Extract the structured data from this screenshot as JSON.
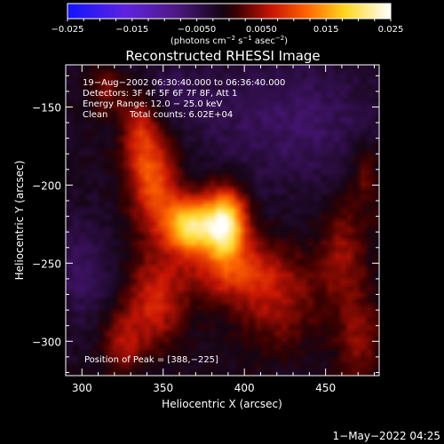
{
  "chart_data": {
    "type": "heatmap",
    "title": "Reconstructed RHESSI Image",
    "xlabel": "Heliocentric X (arcsec)",
    "ylabel": "Heliocentric Y (arcsec)",
    "xlim": [
      290,
      483
    ],
    "ylim": [
      -322,
      -123
    ],
    "x_ticks": [
      300,
      350,
      400,
      450
    ],
    "y_ticks": [
      -150,
      -200,
      -250,
      -300
    ],
    "colorbar": {
      "ticks": [
        "−0.025",
        "−0.015",
        "−0.0050",
        "0.0050",
        "0.015",
        "0.025"
      ],
      "range": [
        -0.025,
        0.025
      ],
      "label": "(photons cm",
      "label_exp1": "−2",
      "label_mid": " s",
      "label_exp2": "−1",
      "label_end": " asec",
      "label_exp3": "−2",
      "label_close": ")"
    },
    "info": {
      "time": "19−Aug−2002 06:30:40.000 to 06:36:40.000",
      "detectors": "Detectors: 3F 4F 5F 6F 7F 8F, Att 1",
      "energy": "Energy Range: 12.0 − 25.0 keV",
      "clean": "Clean",
      "counts": "Total counts: 6.02E+04"
    },
    "peak_label": "Position of Peak = [388,−225]",
    "peak": [
      388,
      -225
    ],
    "sources": [
      {
        "x": 388,
        "y": -225,
        "sx": 9,
        "sy": 15,
        "a": 0.0245
      },
      {
        "x": 366,
        "y": -226,
        "sx": 10,
        "sy": 12,
        "a": 0.0215
      },
      {
        "x": 345,
        "y": -200,
        "sx": 10,
        "sy": 22,
        "a": 0.0115
      },
      {
        "x": 335,
        "y": -165,
        "sx": 8,
        "sy": 20,
        "a": 0.0085
      },
      {
        "x": 315,
        "y": -140,
        "sx": 7,
        "sy": 10,
        "a": 0.006
      },
      {
        "x": 395,
        "y": -255,
        "sx": 24,
        "sy": 14,
        "a": 0.009
      },
      {
        "x": 345,
        "y": -275,
        "sx": 12,
        "sy": 20,
        "a": 0.0085
      },
      {
        "x": 325,
        "y": -300,
        "sx": 9,
        "sy": 14,
        "a": 0.0065
      },
      {
        "x": 420,
        "y": -280,
        "sx": 18,
        "sy": 18,
        "a": 0.0055
      },
      {
        "x": 460,
        "y": -245,
        "sx": 10,
        "sy": 22,
        "a": 0.006
      },
      {
        "x": 470,
        "y": -300,
        "sx": 9,
        "sy": 22,
        "a": 0.0055
      },
      {
        "x": 475,
        "y": -195,
        "sx": 7,
        "sy": 18,
        "a": 0.0045
      },
      {
        "x": 300,
        "y": -255,
        "sx": 12,
        "sy": 24,
        "a": -0.004
      },
      {
        "x": 430,
        "y": -160,
        "sx": 40,
        "sy": 28,
        "a": -0.0045
      },
      {
        "x": 350,
        "y": -140,
        "sx": 22,
        "sy": 14,
        "a": -0.003
      }
    ],
    "background": -0.0015
  },
  "footer": {
    "timestamp": "1−May−2022 04:25"
  }
}
